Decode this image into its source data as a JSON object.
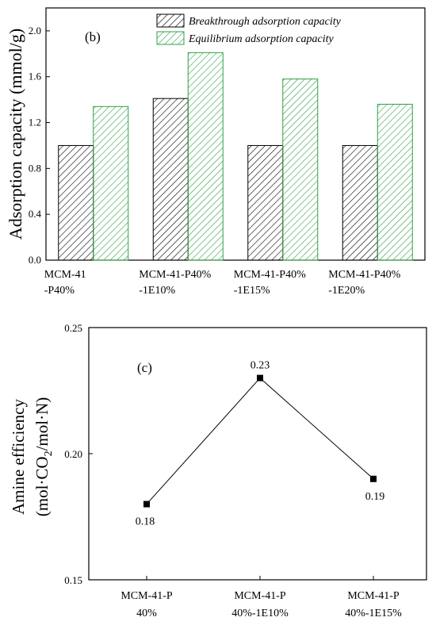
{
  "chart_data": [
    {
      "type": "bar",
      "panel_label": "(b)",
      "ylabel": "Adsorption capacity (mmol/g)",
      "ylim": [
        0,
        2.2
      ],
      "yticks": [
        "0.0",
        "0.4",
        "0.8",
        "1.2",
        "1.6",
        "2.0"
      ],
      "categories": [
        [
          "MCM-41",
          "-P40%"
        ],
        [
          "MCM-41-P40%",
          "-1E10%"
        ],
        [
          "MCM-41-P40%",
          "-1E15%"
        ],
        [
          "MCM-41-P40%",
          "-1E20%"
        ]
      ],
      "series": [
        {
          "name": "Breakthrough adsorption capacity",
          "values": [
            1.0,
            1.41,
            1.0,
            1.0
          ],
          "color": "#000000"
        },
        {
          "name": "Equilibrium adsorption capacity",
          "values": [
            1.34,
            1.81,
            1.58,
            1.36
          ],
          "color": "#2ea043"
        }
      ],
      "legend_position": "top-right",
      "grid": false
    },
    {
      "type": "line",
      "panel_label": "(c)",
      "ylabel_line1": "Amine efficiency",
      "ylabel_line2_parts": [
        "(mol·CO",
        "2",
        "/mol·N)"
      ],
      "ylim": [
        0.15,
        0.25
      ],
      "yticks": [
        "0.15",
        "0.20",
        "0.25"
      ],
      "categories": [
        [
          "MCM-41-P",
          "40%"
        ],
        [
          "MCM-41-P",
          "40%-1E10%"
        ],
        [
          "MCM-41-P",
          "40%-1E15%"
        ]
      ],
      "values": [
        0.18,
        0.23,
        0.19
      ],
      "data_labels": [
        "0.18",
        "0.23",
        "0.19"
      ],
      "grid": false
    }
  ]
}
